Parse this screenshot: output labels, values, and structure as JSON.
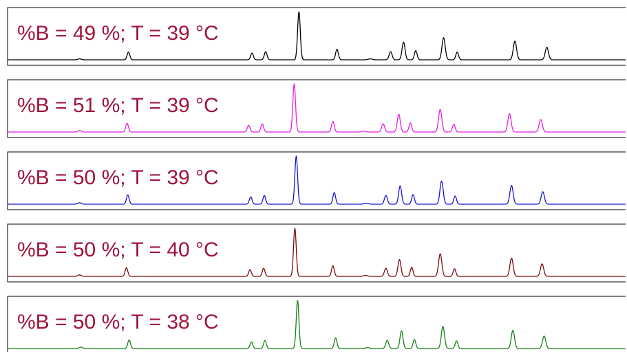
{
  "chart_data": {
    "type": "line",
    "xlabel": "",
    "ylabel": "",
    "xlim": [
      0,
      910
    ],
    "ylim": [
      0,
      100
    ],
    "grid": false,
    "peaks": [
      {
        "x": 106,
        "w": 2.6
      },
      {
        "x": 178,
        "w": 2.0
      },
      {
        "x": 360,
        "w": 2.0
      },
      {
        "x": 380,
        "w": 2.0
      },
      {
        "x": 429,
        "w": 2.0
      },
      {
        "x": 485,
        "w": 2.0
      },
      {
        "x": 534,
        "w": 3.0
      },
      {
        "x": 564,
        "w": 2.2
      },
      {
        "x": 583,
        "w": 2.2
      },
      {
        "x": 601,
        "w": 2.0
      },
      {
        "x": 642,
        "w": 2.4
      },
      {
        "x": 662,
        "w": 2.0
      },
      {
        "x": 747,
        "w": 2.4
      },
      {
        "x": 794,
        "w": 2.4
      }
    ],
    "panels": [
      {
        "label": "%B = 49 %; T = 39 °C",
        "color": "#000000",
        "label_color": "#A0143C",
        "retention_times": [
          106,
          178,
          360,
          380,
          429,
          485,
          534,
          564,
          583,
          601,
          642,
          662,
          747,
          794
        ],
        "intensities": [
          2,
          16,
          14,
          17,
          100,
          22,
          2,
          17,
          37,
          19,
          46,
          16,
          39,
          26
        ]
      },
      {
        "label": "%B = 51 %; T = 39 °C",
        "color": "#E61EE6",
        "label_color": "#A0143C",
        "retention_times": [
          106,
          176,
          355,
          375,
          422,
          479,
          524,
          553,
          576,
          593,
          637,
          657,
          739,
          785
        ],
        "intensities": [
          3,
          18,
          14,
          17,
          100,
          22,
          2,
          17,
          37,
          19,
          47,
          16,
          38,
          26
        ]
      },
      {
        "label": "%B = 50 %; T = 39 °C",
        "color": "#1414D2",
        "label_color": "#A0143C",
        "retention_times": [
          106,
          177,
          358,
          378,
          425,
          481,
          528,
          557,
          578,
          597,
          639,
          659,
          742,
          788
        ],
        "intensities": [
          3,
          19,
          15,
          18,
          100,
          24,
          2,
          18,
          38,
          20,
          48,
          17,
          39,
          26
        ]
      },
      {
        "label": "%B = 50 %; T = 40 °C",
        "color": "#7A0A0A",
        "label_color": "#A0143C",
        "retention_times": [
          106,
          175,
          357,
          377,
          423,
          479,
          527,
          557,
          577,
          595,
          637,
          658,
          742,
          787
        ],
        "intensities": [
          3,
          18,
          14,
          17,
          100,
          22,
          2,
          17,
          35,
          19,
          47,
          16,
          38,
          26
        ]
      },
      {
        "label": "%B = 50 %; T = 38 °C",
        "color": "#148214",
        "label_color": "#A0143C",
        "retention_times": [
          108,
          179,
          359,
          379,
          427,
          483,
          530,
          559,
          580,
          599,
          641,
          661,
          744,
          790
        ],
        "intensities": [
          3,
          18,
          14,
          17,
          100,
          22,
          2,
          17,
          37,
          19,
          46,
          16,
          38,
          26
        ]
      }
    ]
  }
}
